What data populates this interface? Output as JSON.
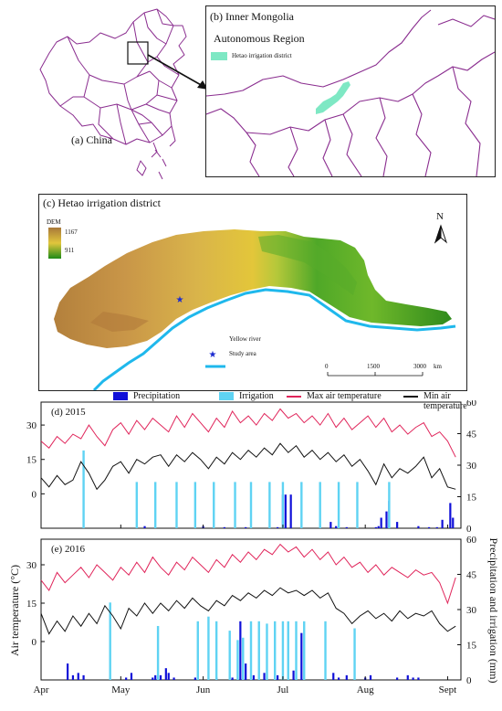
{
  "panel_a": {
    "label": "(a) China"
  },
  "panel_b": {
    "label_line1": "(b) Inner Mongolia",
    "label_line2": "Autonomous Region",
    "legend_label": "Hetao irrigation district",
    "legend_color": "#7ee8c4"
  },
  "panel_c": {
    "label": "(c) Hetao irrigation district",
    "dem": {
      "title": "DEM",
      "max": "1167",
      "min": "911"
    },
    "north": "N",
    "legend": {
      "river": "Yellow river",
      "study": "Study area"
    },
    "scale": {
      "ticks": [
        "0",
        "1500",
        "3000"
      ],
      "unit": "km"
    },
    "river_color": "#1fb8ec",
    "study_color": "#1a2ad0"
  },
  "panel_d": {
    "label": "(d) 2015"
  },
  "panel_e": {
    "label": "(e) 2016"
  },
  "legend": {
    "precip": "Precipitation",
    "irrig": "Irrigation",
    "max": "Max air temperature",
    "min": "Min air temperature"
  },
  "colors": {
    "precip": "#1010d8",
    "irrig": "#5fd3f3",
    "max": "#e0245a",
    "min": "#111111"
  },
  "chart_data": [
    {
      "type": "line",
      "title": "(d) 2015",
      "ylabel": "Air temperature (°C)",
      "y2label": "Precipitation and irrigation (mm)",
      "ylim": [
        -15,
        40
      ],
      "y2lim": [
        0,
        60
      ],
      "yticks": [
        0,
        15,
        30
      ],
      "y2ticks": [
        0,
        15,
        30,
        45,
        60
      ],
      "xticks": [
        "Apr",
        "May",
        "Jun",
        "Jul",
        "Aug",
        "Sept"
      ],
      "xtick_days": [
        0,
        30,
        61,
        91,
        122,
        153
      ],
      "x_range": [
        0,
        158
      ],
      "series": [
        {
          "name": "Max air temperature",
          "axis": "left",
          "x": [
            0,
            3,
            6,
            9,
            12,
            15,
            18,
            21,
            24,
            27,
            30,
            33,
            36,
            39,
            42,
            45,
            48,
            51,
            54,
            57,
            60,
            63,
            66,
            69,
            72,
            75,
            78,
            81,
            84,
            87,
            90,
            93,
            96,
            99,
            102,
            105,
            108,
            111,
            114,
            117,
            120,
            123,
            126,
            129,
            132,
            135,
            138,
            141,
            144,
            147,
            150,
            153,
            156
          ],
          "y": [
            23,
            20,
            25,
            22,
            26,
            24,
            30,
            25,
            21,
            28,
            31,
            26,
            32,
            28,
            33,
            30,
            27,
            34,
            29,
            35,
            31,
            27,
            33,
            29,
            36,
            31,
            34,
            30,
            35,
            32,
            37,
            33,
            35,
            31,
            34,
            30,
            35,
            29,
            33,
            28,
            31,
            34,
            29,
            33,
            27,
            30,
            26,
            29,
            31,
            25,
            27,
            23,
            16
          ]
        },
        {
          "name": "Min air temperature",
          "axis": "left",
          "x": [
            0,
            3,
            6,
            9,
            12,
            15,
            18,
            21,
            24,
            27,
            30,
            33,
            36,
            39,
            42,
            45,
            48,
            51,
            54,
            57,
            60,
            63,
            66,
            69,
            72,
            75,
            78,
            81,
            84,
            87,
            90,
            93,
            96,
            99,
            102,
            105,
            108,
            111,
            114,
            117,
            120,
            123,
            126,
            129,
            132,
            135,
            138,
            141,
            144,
            147,
            150,
            153,
            156
          ],
          "y": [
            7,
            3,
            8,
            4,
            6,
            14,
            9,
            2,
            6,
            12,
            14,
            9,
            15,
            13,
            16,
            17,
            12,
            17,
            14,
            18,
            15,
            11,
            16,
            13,
            18,
            15,
            19,
            16,
            20,
            17,
            22,
            18,
            21,
            16,
            19,
            15,
            18,
            14,
            17,
            12,
            15,
            10,
            4,
            13,
            7,
            11,
            9,
            12,
            16,
            7,
            11,
            3,
            2
          ]
        },
        {
          "name": "Precipitation",
          "axis": "right",
          "type": "bar",
          "x": [
            39,
            61,
            69,
            77,
            89,
            91,
            92,
            94,
            109,
            111,
            115,
            126,
            127,
            128,
            130,
            131,
            134,
            142,
            146,
            149,
            151,
            154,
            155
          ],
          "y": [
            1,
            1,
            0.5,
            0.5,
            0.5,
            16,
            16,
            16,
            3,
            1,
            0.5,
            0.5,
            1,
            5,
            8,
            13,
            3,
            1,
            0.5,
            0.5,
            4,
            12,
            5
          ]
        },
        {
          "name": "Irrigation",
          "axis": "right",
          "type": "bar",
          "x": [
            16,
            36,
            43,
            51,
            58,
            65,
            73,
            79,
            86,
            91,
            98,
            105,
            112,
            119,
            131
          ],
          "y": [
            37,
            22,
            22,
            22,
            22,
            22,
            22,
            22,
            22,
            22,
            22,
            22,
            22,
            22,
            22
          ]
        }
      ]
    },
    {
      "type": "line",
      "title": "(e) 2016",
      "ylabel": "Air temperature (°C)",
      "y2label": "Precipitation and irrigation (mm)",
      "ylim": [
        -15,
        40
      ],
      "y2lim": [
        0,
        60
      ],
      "yticks": [
        0,
        15,
        30
      ],
      "y2ticks": [
        0,
        15,
        30,
        45,
        60
      ],
      "xticks": [
        "Apr",
        "May",
        "Jun",
        "Jul",
        "Aug",
        "Sept"
      ],
      "xtick_days": [
        0,
        30,
        61,
        91,
        122,
        153
      ],
      "x_range": [
        0,
        158
      ],
      "series": [
        {
          "name": "Max air temperature",
          "axis": "left",
          "x": [
            0,
            3,
            6,
            9,
            12,
            15,
            18,
            21,
            24,
            27,
            30,
            33,
            36,
            39,
            42,
            45,
            48,
            51,
            54,
            57,
            60,
            63,
            66,
            69,
            72,
            75,
            78,
            81,
            84,
            87,
            90,
            93,
            96,
            99,
            102,
            105,
            108,
            111,
            114,
            117,
            120,
            123,
            126,
            129,
            132,
            135,
            138,
            141,
            144,
            147,
            150,
            153,
            156
          ],
          "y": [
            24,
            20,
            27,
            23,
            26,
            29,
            25,
            30,
            27,
            24,
            29,
            26,
            31,
            27,
            33,
            29,
            26,
            31,
            28,
            33,
            30,
            27,
            32,
            29,
            34,
            31,
            35,
            32,
            36,
            34,
            38,
            35,
            37,
            33,
            36,
            32,
            35,
            30,
            33,
            29,
            31,
            27,
            30,
            26,
            29,
            27,
            25,
            28,
            26,
            27,
            23,
            15,
            25
          ]
        },
        {
          "name": "Min air temperature",
          "axis": "left",
          "x": [
            0,
            3,
            6,
            9,
            12,
            15,
            18,
            21,
            24,
            27,
            30,
            33,
            36,
            39,
            42,
            45,
            48,
            51,
            54,
            57,
            60,
            63,
            66,
            69,
            72,
            75,
            78,
            81,
            84,
            87,
            90,
            93,
            96,
            99,
            102,
            105,
            108,
            111,
            114,
            117,
            120,
            123,
            126,
            129,
            132,
            135,
            138,
            141,
            144,
            147,
            150,
            153,
            156
          ],
          "y": [
            11,
            3,
            8,
            4,
            10,
            6,
            11,
            7,
            14,
            10,
            5,
            13,
            10,
            15,
            11,
            15,
            12,
            16,
            13,
            17,
            14,
            12,
            16,
            14,
            18,
            16,
            19,
            17,
            20,
            18,
            21,
            19,
            20,
            18,
            20,
            17,
            19,
            13,
            11,
            7,
            10,
            12,
            9,
            11,
            8,
            12,
            9,
            11,
            10,
            12,
            7,
            4,
            6
          ]
        },
        {
          "name": "Precipitation",
          "axis": "right",
          "type": "bar",
          "x": [
            10,
            12,
            14,
            16,
            32,
            34,
            42,
            43,
            45,
            47,
            48,
            50,
            58,
            66,
            72,
            75,
            77,
            80,
            84,
            89,
            95,
            98,
            110,
            112,
            115,
            122,
            124,
            134,
            138,
            140,
            142
          ],
          "y": [
            7,
            2,
            3,
            2,
            1,
            3,
            1,
            2,
            2,
            5,
            3,
            1,
            1,
            1,
            1,
            25,
            7,
            2,
            3,
            2,
            4,
            20,
            3,
            1,
            2,
            1,
            2,
            1,
            2,
            1,
            1
          ]
        },
        {
          "name": "Irrigation",
          "axis": "right",
          "type": "bar",
          "x": [
            26,
            44,
            59,
            63,
            66,
            71,
            74,
            76,
            79,
            82,
            85,
            88,
            91,
            93,
            96,
            99,
            107,
            118
          ],
          "y": [
            33,
            23,
            25,
            27,
            25,
            21,
            17,
            18,
            25,
            25,
            24,
            25,
            25,
            25,
            25,
            25,
            25,
            22
          ]
        }
      ]
    }
  ]
}
